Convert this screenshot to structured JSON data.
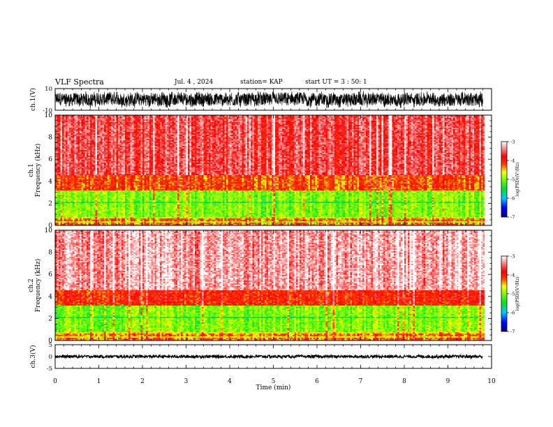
{
  "header": {
    "title": "VLF Spectra",
    "date": "Jul. 4 , 2024",
    "station": "station= KAP",
    "start_ut": "start UT =  3 : 50: 1"
  },
  "colors": {
    "background": "#ffffff",
    "axes": "#000000",
    "waveform": "#000000",
    "colormap": [
      "#000080",
      "#0000ff",
      "#00ffff",
      "#00ff00",
      "#ffff00",
      "#ff0000",
      "#ffffff"
    ]
  },
  "chart_data": [
    {
      "type": "line",
      "id": "ch1-waveform",
      "ylabel": "ch.1(V)",
      "yticks": [
        "10",
        "-10"
      ],
      "ylim": [
        -10,
        10
      ],
      "xlim": [
        0,
        10
      ],
      "data_extent_min": 9.8,
      "description_of_values": "dense noisy waveform filling roughly -8 to 8 V",
      "amplitude_range": [
        -8,
        8
      ]
    },
    {
      "type": "heatmap",
      "id": "ch1-spectrogram",
      "ylabel": "ch.1\nFrequency (kHz)",
      "ylabel_lines": [
        "ch.1",
        "Frequency (kHz)"
      ],
      "yticks": [
        "0",
        "2",
        "4",
        "6",
        "8",
        "10"
      ],
      "ylim": [
        0,
        10
      ],
      "xlim": [
        0,
        10
      ],
      "data_extent_min": 9.8,
      "value_range_log_psd": [
        -7,
        -3
      ],
      "bands_khz": [
        {
          "from": 0.0,
          "to": 0.8,
          "level": -4.3
        },
        {
          "from": 0.8,
          "to": 3.2,
          "level": -5.0
        },
        {
          "from": 3.2,
          "to": 4.5,
          "level": -4.2
        },
        {
          "from": 4.5,
          "to": 10.0,
          "level": -3.6
        }
      ],
      "colorbar": {
        "label": "log(PSD)(V²/Hz)",
        "ticks": [
          "-3",
          "-4",
          "-5",
          "-6",
          "-7"
        ]
      }
    },
    {
      "type": "heatmap",
      "id": "ch2-spectrogram",
      "ylabel_lines": [
        "ch.2",
        "Frequency (kHz)"
      ],
      "yticks": [
        "0",
        "2",
        "4",
        "6",
        "8",
        "10"
      ],
      "ylim": [
        0,
        10
      ],
      "xlim": [
        0,
        10
      ],
      "data_extent_min": 9.8,
      "value_range_log_psd": [
        -7,
        -3
      ],
      "bands_khz": [
        {
          "from": 0.0,
          "to": 0.8,
          "level": -4.3
        },
        {
          "from": 0.8,
          "to": 3.2,
          "level": -5.0
        },
        {
          "from": 3.2,
          "to": 4.5,
          "level": -4.0
        },
        {
          "from": 4.5,
          "to": 10.0,
          "level": -3.3
        }
      ],
      "colorbar": {
        "label": "log(PSD)(V²/Hz)",
        "ticks": [
          "-3",
          "-4",
          "-5",
          "-6",
          "-7"
        ]
      }
    },
    {
      "type": "line",
      "id": "ch3-waveform",
      "ylabel": "ch.3(V)",
      "yticks": [
        "5",
        "0",
        "-5"
      ],
      "ylim": [
        -5,
        5
      ],
      "xlim": [
        0,
        10
      ],
      "data_extent_min": 9.8,
      "amplitude_range": [
        -0.6,
        0.6
      ]
    }
  ],
  "xaxis": {
    "label": "Time (min)",
    "ticks": [
      "0",
      "1",
      "2",
      "3",
      "4",
      "5",
      "6",
      "7",
      "8",
      "9",
      "10"
    ]
  }
}
